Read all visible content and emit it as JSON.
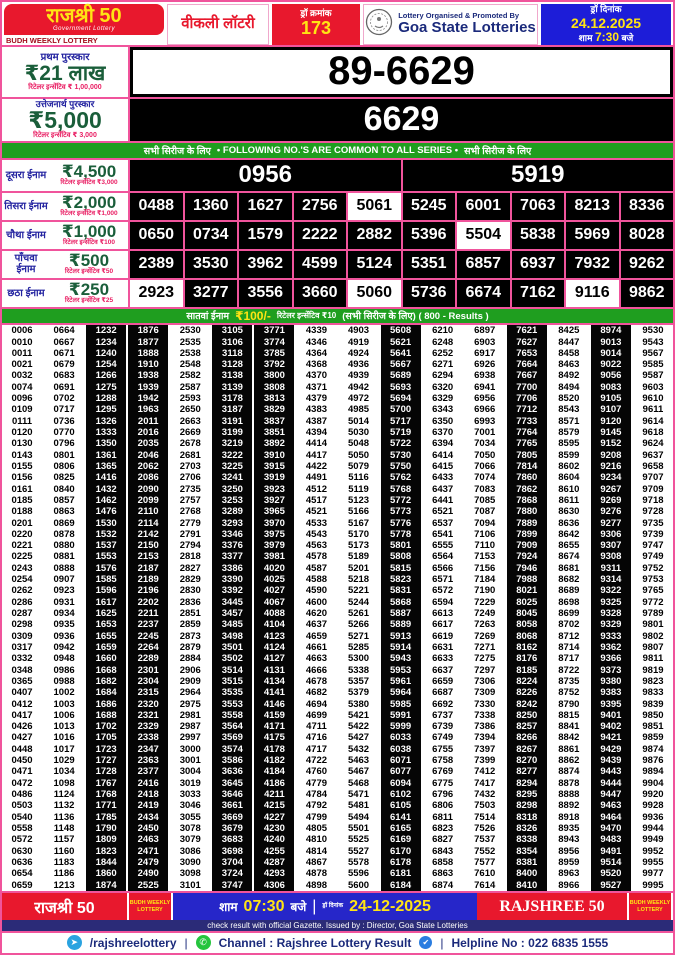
{
  "header": {
    "brand_title": "राजश्री 50",
    "brand_sub": "Government Lottery",
    "brand_strip": "BUDH WEEKLY LOTTERY",
    "weekly": "वीकली लॉटरी",
    "draw_no_label": "ड्रॉ क्रमांक",
    "draw_no": "173",
    "org_line1": "Lottery Organised & Promoted By",
    "org_line2": "Goa State Lotteries",
    "date_label": "ड्रॉ दिनांक",
    "date": "24.12.2025",
    "time_prefix": "शाम",
    "time": "7:30",
    "time_suffix": "बजे"
  },
  "first_prize": {
    "name": "प्रथम पुरस्कार",
    "amount": "₹21 लाख",
    "incentive": "रिटेलर इन्सेंटिव ₹ 1,00,000",
    "number": "89-6629"
  },
  "consolation": {
    "name": "उत्तेजनार्थ पुरस्कार",
    "amount": "₹5,000",
    "incentive": "रिटेलर इन्सेंटिव ₹ 3,000",
    "number": "6629"
  },
  "series_bar": {
    "left": "सभी सिरीज के लिए",
    "center": "• FOLLOWING NO.'S ARE COMMON TO ALL SERIES •",
    "right": "सभी सिरीज के लिए"
  },
  "tiers": [
    {
      "name": "दूसरा ईनाम",
      "amount": "₹4,500",
      "incentive": "रिटेलर इन्सेंटिव ₹3,000",
      "numbers": [
        "0956",
        "5919"
      ],
      "highlights": []
    },
    {
      "name": "तिसरा ईनाम",
      "amount": "₹2,000",
      "incentive": "रिटेलर इन्सेंटिव ₹1,000",
      "numbers": [
        "0488",
        "1360",
        "1627",
        "2756",
        "5061",
        "5245",
        "6001",
        "7063",
        "8213",
        "8336"
      ],
      "highlights": [
        "5061"
      ]
    },
    {
      "name": "चौथा ईनाम",
      "amount": "₹1,000",
      "incentive": "रिटेलर इन्सेंटिव ₹100",
      "numbers": [
        "0650",
        "0734",
        "1579",
        "2222",
        "2882",
        "5396",
        "5504",
        "5838",
        "5969",
        "8028"
      ],
      "highlights": [
        "5504"
      ]
    },
    {
      "name": "पाँचवा ईनाम",
      "amount": "₹500",
      "incentive": "रिटेलर इन्सेंटिव ₹50",
      "numbers": [
        "2389",
        "3530",
        "3962",
        "4599",
        "5124",
        "5351",
        "6857",
        "6937",
        "7932",
        "9262"
      ],
      "highlights": []
    },
    {
      "name": "छठा ईनाम",
      "amount": "₹250",
      "incentive": "रिटेलर इन्सेंटिव ₹25",
      "numbers": [
        "2923",
        "3277",
        "3556",
        "3660",
        "5060",
        "5736",
        "6674",
        "7162",
        "9116",
        "9862"
      ],
      "highlights": [
        "2923",
        "5060",
        "9116"
      ]
    }
  ],
  "seventh": {
    "bar_label": "सातवां ईनाम",
    "bar_amount": "₹100/-",
    "bar_incentive": "रिटेलर इन्सेंटिव ₹10",
    "bar_note": "(सभी सिरीज के लिए) ( 800 - Results )",
    "dark_columns": [
      2,
      3,
      5,
      6,
      9,
      12,
      14
    ],
    "rows": [
      "0006 0664 1232 1876 2530 3105 3771 4339 4903 5608 6210 6897 7621 8425 8974 9530",
      "0010 0667 1234 1877 2535 3106 3774 4346 4919 5621 6248 6903 7627 8447 9013 9543",
      "0011 0671 1240 1888 2538 3118 3785 4364 4924 5641 6252 6917 7653 8458 9014 9567",
      "0021 0679 1254 1910 2548 3128 3792 4368 4936 5667 6271 6926 7664 8463 9022 9585",
      "0032 0683 1266 1938 2582 3138 3800 4370 4939 5689 6294 6938 7667 8492 9056 9587",
      "0074 0691 1275 1939 2587 3139 3808 4371 4942 5693 6320 6941 7700 8494 9083 9603",
      "0096 0702 1288 1942 2593 3178 3813 4379 4972 5694 6329 6956 7706 8520 9105 9610",
      "0109 0717 1295 1963 2650 3187 3829 4383 4985 5700 6343 6966 7712 8543 9107 9611",
      "0111 0736 1326 2011 2663 3191 3837 4387 5014 5717 6350 6993 7733 8571 9120 9614",
      "0120 0770 1333 2016 2669 3199 3851 4394 5030 5719 6370 7001 7764 8579 9145 9618",
      "0130 0796 1350 2035 2678 3219 3892 4414 5048 5722 6394 7034 7765 8595 9152 9624",
      "0143 0801 1361 2046 2681 3222 3910 4417 5050 5730 6414 7050 7805 8599 9208 9637",
      "0155 0806 1365 2062 2703 3225 3915 4422 5079 5750 6415 7066 7814 8602 9216 9658",
      "0156 0825 1416 2086 2706 3241 3919 4491 5116 5762 6433 7074 7860 8604 9234 9707",
      "0161 0840 1432 2090 2735 3250 3923 4512 5119 5768 6437 7083 7862 8610 9267 9709",
      "0185 0857 1462 2099 2757 3253 3927 4517 5123 5772 6441 7085 7868 8611 9269 9718",
      "0188 0863 1476 2110 2768 3289 3965 4521 5166 5773 6521 7087 7880 8630 9276 9728",
      "0201 0869 1530 2114 2779 3293 3970 4533 5167 5776 6537 7094 7889 8636 9277 9735",
      "0220 0878 1532 2142 2791 3346 3975 4543 5170 5778 6541 7106 7899 8642 9306 9739",
      "0221 0880 1537 2150 2794 3376 3979 4563 5173 5801 6555 7110 7909 8655 9307 9747",
      "0225 0881 1553 2153 2818 3377 3981 4578 5189 5808 6564 7153 7924 8674 9308 9749",
      "0243 0888 1576 2187 2827 3386 4020 4587 5201 5815 6566 7156 7946 8681 9311 9752",
      "0254 0907 1585 2189 2829 3390 4025 4588 5218 5823 6571 7184 7988 8682 9314 9753",
      "0262 0923 1596 2196 2830 3392 4027 4590 5221 5831 6572 7190 8021 8689 9322 9765",
      "0286 0931 1617 2202 2836 3445 4067 4600 5244 5868 6594 7229 8025 8698 9325 9772",
      "0287 0934 1625 2211 2851 3457 4088 4620 5261 5887 6613 7249 8045 8699 9328 9789",
      "0298 0935 1653 2237 2859 3485 4104 4637 5266 5889 6617 7263 8058 8702 9329 9801",
      "0309 0936 1655 2245 2873 3498 4123 4659 5271 5913 6619 7269 8068 8712 9333 9802",
      "0317 0942 1659 2264 2879 3501 4124 4661 5285 5914 6631 7271 8162 8714 9362 9807",
      "0332 0948 1660 2289 2884 3502 4127 4663 5300 5943 6633 7275 8176 8717 9366 9811",
      "0348 0986 1668 2301 2906 3514 4131 4666 5338 5953 6637 7297 8185 8722 9373 9819",
      "0365 0988 1682 2304 2909 3515 4134 4678 5357 5961 6659 7306 8224 8735 9380 9823",
      "0407 1002 1684 2315 2964 3535 4141 4682 5379 5964 6687 7309 8226 8752 9383 9833",
      "0412 1003 1686 2320 2975 3553 4146 4694 5380 5985 6692 7330 8242 8790 9395 9839",
      "0417 1006 1688 2321 2981 3558 4159 4699 5421 5991 6737 7338 8250 8815 9401 9850",
      "0426 1013 1702 2329 2987 3564 4171 4711 5422 5999 6739 7386 8257 8841 9402 9851",
      "0427 1016 1705 2338 2997 3569 4175 4716 5427 6033 6749 7394 8266 8842 9421 9859",
      "0448 1017 1723 2347 3000 3574 4178 4717 5432 6038 6755 7397 8267 8861 9429 9874",
      "0450 1029 1727 2363 3001 3586 4182 4722 5463 6071 6758 7399 8270 8862 9439 9876",
      "0471 1034 1728 2377 3004 3636 4184 4760 5467 6077 6769 7412 8277 8874 9443 9894",
      "0472 1098 1767 2416 3019 3645 4186 4779 5468 6094 6775 7417 8294 8878 9444 9904",
      "0486 1124 1768 2418 3033 3646 4211 4784 5471 6102 6796 7432 8295 8888 9447 9920",
      "0503 1132 1771 2419 3046 3661 4215 4792 5481 6105 6806 7503 8298 8892 9463 9928",
      "0540 1136 1785 2434 3055 3669 4227 4799 5494 6141 6811 7514 8318 8918 9464 9936",
      "0558 1148 1790 2450 3078 3679 4230 4805 5501 6165 6823 7526 8326 8935 9470 9944",
      "0572 1157 1809 2463 3079 3683 4240 4810 5525 6169 6827 7537 8338 8943 9483 9949",
      "0630 1160 1823 2471 3086 3698 4255 4814 5527 6170 6843 7552 8354 8956 9491 9952",
      "0636 1183 1844 2479 3090 3704 4287 4867 5578 6178 6858 7577 8381 8959 9514 9955",
      "0654 1186 1860 2490 3098 3724 4293 4878 5596 6181 6863 7610 8400 8963 9520 9977",
      "0659 1213 1874 2525 3101 3747 4306 4898 5600 6184 6874 7614 8410 8966 9527 9995"
    ]
  },
  "footer": {
    "brand": "राजश्री 50",
    "mini": "BUDH WEEKLY LOTTERY",
    "time_prefix": "शाम",
    "time": "07:30",
    "time_suffix": "बजे",
    "date_label": "ड्रॉ दिनांक",
    "date": "24-12-2025",
    "brand_en": "RAJSHREE 50",
    "gazette": "check result with official Gazette. Issued by : Director, Goa State Lotteries",
    "telegram": "/rajshreelottery",
    "channel": "Channel : Rajshree Lottery Result",
    "helpline": "Helpline No : 022 6835 1555"
  },
  "colors": {
    "pink_border": "#f0549c",
    "red": "#e8182d",
    "header_blue": "#1d1dd8",
    "footer_blue": "#2626c9",
    "navy": "#1b2a7b",
    "green_bar": "#1f9e1f",
    "amount_green": "#1a5e3a",
    "incentive_pink": "#e91e63",
    "yellow": "#ffe414"
  }
}
